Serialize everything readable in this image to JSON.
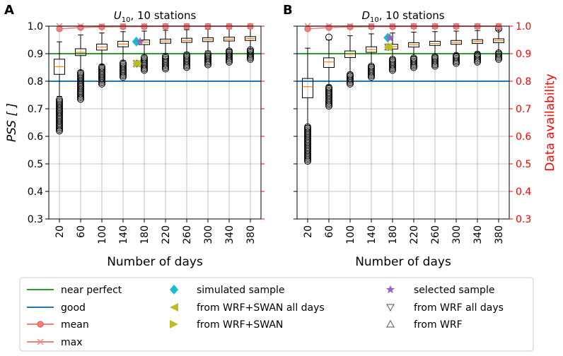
{
  "chart_data": [
    {
      "type": "box",
      "panel_label": "A",
      "title_var": "U",
      "title_sub": "10",
      "title_rest": ", 10 stations",
      "ylabel": "PSS [ ]",
      "xlabel": "Number of days",
      "ylim": [
        0.3,
        1.0
      ],
      "yticks": [
        "0.3",
        "0.4",
        "0.5",
        "0.6",
        "0.7",
        "0.8",
        "0.9",
        "1.0"
      ],
      "categories": [
        "20",
        "60",
        "100",
        "140",
        "180",
        "220",
        "260",
        "300",
        "340",
        "380"
      ],
      "boxes": [
        {
          "whislo": 0.745,
          "q1": 0.825,
          "med": 0.853,
          "q3": 0.88,
          "whishi": 0.943,
          "fliers_lo": [
            0.62,
            0.735
          ],
          "fliers_hi": []
        },
        {
          "whislo": 0.84,
          "q1": 0.893,
          "med": 0.905,
          "q3": 0.918,
          "whishi": 0.968,
          "fliers_lo": [
            0.735,
            0.835
          ],
          "fliers_hi": []
        },
        {
          "whislo": 0.86,
          "q1": 0.913,
          "med": 0.924,
          "q3": 0.935,
          "whishi": 0.975,
          "fliers_lo": [
            0.79,
            0.855
          ],
          "fliers_hi": []
        },
        {
          "whislo": 0.875,
          "q1": 0.925,
          "med": 0.935,
          "q3": 0.945,
          "whishi": 0.98,
          "fliers_lo": [
            0.815,
            0.87
          ],
          "fliers_hi": []
        },
        {
          "whislo": 0.895,
          "q1": 0.933,
          "med": 0.942,
          "q3": 0.95,
          "whishi": 0.982,
          "fliers_lo": [
            0.84,
            0.89
          ],
          "fliers_hi": []
        },
        {
          "whislo": 0.9,
          "q1": 0.938,
          "med": 0.946,
          "q3": 0.953,
          "whishi": 0.985,
          "fliers_lo": [
            0.845,
            0.895
          ],
          "fliers_hi": []
        },
        {
          "whislo": 0.905,
          "q1": 0.941,
          "med": 0.948,
          "q3": 0.956,
          "whishi": 0.987,
          "fliers_lo": [
            0.85,
            0.9
          ],
          "fliers_hi": []
        },
        {
          "whislo": 0.91,
          "q1": 0.944,
          "med": 0.951,
          "q3": 0.958,
          "whishi": 0.989,
          "fliers_lo": [
            0.86,
            0.905
          ],
          "fliers_hi": []
        },
        {
          "whislo": 0.915,
          "q1": 0.946,
          "med": 0.953,
          "q3": 0.96,
          "whishi": 0.99,
          "fliers_lo": [
            0.87,
            0.91
          ],
          "fliers_hi": []
        },
        {
          "whislo": 0.918,
          "q1": 0.948,
          "med": 0.955,
          "q3": 0.962,
          "whishi": 0.991,
          "fliers_lo": [
            0.88,
            0.915
          ],
          "fliers_hi": []
        }
      ],
      "near_perfect": 0.9,
      "good": 0.8,
      "availability_ylim": [
        0.3,
        1.0
      ],
      "availability_yticks": [
        "0.3",
        "0.4",
        "0.5",
        "0.6",
        "0.7",
        "0.8",
        "0.9",
        "1.0"
      ],
      "availability_ylabel": "Data availability",
      "mean_availability": [
        0.99,
        0.995,
        0.997,
        0.998,
        0.998,
        0.999,
        0.999,
        0.999,
        0.999,
        0.999
      ],
      "max_availability": [
        1.0,
        1.0,
        1.0,
        1.0,
        1.0,
        1.0,
        1.0,
        1.0,
        1.0,
        1.0
      ],
      "markers": {
        "simulated_sample": {
          "days": 165,
          "value": 0.944
        },
        "selected_sample": {
          "days": 172,
          "value": 0.944
        },
        "wrf_swan_all_days": {
          "days": 165,
          "value": 0.864
        },
        "wrf_swan": {
          "days": 168,
          "value": 0.864
        },
        "wrf_all_days": {
          "days": 166,
          "value": 0.864
        },
        "wrf": {
          "days": 166,
          "value": 0.864
        }
      }
    },
    {
      "type": "box",
      "panel_label": "B",
      "title_var": "D",
      "title_sub": "10",
      "title_rest": ", 10 stations",
      "ylabel": "PSS [ ]",
      "xlabel": "Number of days",
      "ylim": [
        0.3,
        1.0
      ],
      "yticks": [
        "0.3",
        "0.4",
        "0.5",
        "0.6",
        "0.7",
        "0.8",
        "0.9",
        "1.0"
      ],
      "categories": [
        "20",
        "60",
        "100",
        "140",
        "180",
        "220",
        "260",
        "300",
        "340",
        "380"
      ],
      "boxes": [
        {
          "whislo": 0.64,
          "q1": 0.74,
          "med": 0.78,
          "q3": 0.81,
          "whishi": 0.92,
          "fliers_lo": [
            0.51,
            0.635
          ],
          "fliers_hi": []
        },
        {
          "whislo": 0.785,
          "q1": 0.85,
          "med": 0.87,
          "q3": 0.885,
          "whishi": 0.95,
          "fliers_lo": [
            0.71,
            0.78
          ],
          "fliers_hi": [
            0.96
          ]
        },
        {
          "whislo": 0.83,
          "q1": 0.886,
          "med": 0.898,
          "q3": 0.91,
          "whishi": 0.965,
          "fliers_lo": [
            0.79,
            0.825
          ],
          "fliers_hi": []
        },
        {
          "whislo": 0.86,
          "q1": 0.905,
          "med": 0.915,
          "q3": 0.925,
          "whishi": 0.972,
          "fliers_lo": [
            0.815,
            0.855
          ],
          "fliers_hi": []
        },
        {
          "whislo": 0.885,
          "q1": 0.917,
          "med": 0.926,
          "q3": 0.934,
          "whishi": 0.975,
          "fliers_lo": [
            0.84,
            0.88
          ],
          "fliers_hi": []
        },
        {
          "whislo": 0.89,
          "q1": 0.924,
          "med": 0.932,
          "q3": 0.94,
          "whishi": 0.978,
          "fliers_lo": [
            0.85,
            0.885
          ],
          "fliers_hi": []
        },
        {
          "whislo": 0.895,
          "q1": 0.93,
          "med": 0.937,
          "q3": 0.945,
          "whishi": 0.98,
          "fliers_lo": [
            0.855,
            0.89
          ],
          "fliers_hi": []
        },
        {
          "whislo": 0.9,
          "q1": 0.934,
          "med": 0.941,
          "q3": 0.948,
          "whishi": 0.982,
          "fliers_lo": [
            0.865,
            0.895
          ],
          "fliers_hi": []
        },
        {
          "whislo": 0.905,
          "q1": 0.937,
          "med": 0.944,
          "q3": 0.951,
          "whishi": 0.984,
          "fliers_lo": [
            0.87,
            0.9
          ],
          "fliers_hi": []
        },
        {
          "whislo": 0.908,
          "q1": 0.94,
          "med": 0.947,
          "q3": 0.954,
          "whishi": 0.985,
          "fliers_lo": [
            0.88,
            0.905
          ],
          "fliers_hi": [
            0.99
          ]
        }
      ],
      "near_perfect": 0.9,
      "good": 0.8,
      "availability_ylim": [
        0.3,
        1.0
      ],
      "availability_yticks": [
        "0.3",
        "0.4",
        "0.5",
        "0.6",
        "0.7",
        "0.8",
        "0.9",
        "1.0"
      ],
      "availability_ylabel": "Data availability",
      "mean_availability": [
        0.99,
        0.995,
        0.997,
        0.998,
        0.998,
        0.999,
        0.999,
        0.999,
        0.999,
        0.999
      ],
      "max_availability": [
        1.0,
        1.0,
        1.0,
        1.0,
        1.0,
        1.0,
        1.0,
        1.0,
        1.0,
        1.0
      ],
      "markers": {
        "simulated_sample": {
          "days": 171,
          "value": 0.958
        },
        "selected_sample": {
          "days": 175,
          "value": 0.958
        },
        "wrf_swan_all_days": {
          "days": 171,
          "value": 0.924
        },
        "wrf_swan": {
          "days": 175,
          "value": 0.924
        },
        "wrf_all_days": {
          "days": 172,
          "value": 0.924
        },
        "wrf": {
          "days": 172,
          "value": 0.924
        }
      }
    }
  ],
  "legend": [
    {
      "key": "near_perfect",
      "label": "near perfect",
      "symbol": "line",
      "color": "#2ca02c"
    },
    {
      "key": "good",
      "label": "good",
      "symbol": "line",
      "color": "#1f77b4"
    },
    {
      "key": "mean",
      "label": "mean",
      "symbol": "line-circle",
      "color": "#f08080"
    },
    {
      "key": "max",
      "label": "max",
      "symbol": "line-x",
      "color": "#f08080"
    },
    {
      "key": "simulated_sample",
      "label": "simulated sample",
      "symbol": "diamond",
      "color": "#17becf"
    },
    {
      "key": "wrf_swan_all_days",
      "label": "from WRF+SWAN all days",
      "symbol": "triangle-left",
      "color": "#bcbd22"
    },
    {
      "key": "wrf_swan",
      "label": "from WRF+SWAN",
      "symbol": "triangle-right",
      "color": "#bcbd22"
    },
    {
      "key": "selected_sample",
      "label": "selected sample",
      "symbol": "star",
      "color": "#9467bd"
    },
    {
      "key": "wrf_all_days",
      "label": "from WRF all days",
      "symbol": "triangle-down-open",
      "color": "#555555"
    },
    {
      "key": "wrf",
      "label": "from WRF",
      "symbol": "triangle-up-open",
      "color": "#555555"
    }
  ],
  "colors": {
    "near_perfect": "#2ca02c",
    "good": "#1f77b4",
    "availability": "#f08080",
    "availability_axis": "#ff0000",
    "median": "#ff7f0e",
    "simulated": "#17becf",
    "selected": "#9467bd",
    "wrf_swan": "#bcbd22",
    "wrf": "#555555",
    "grid": "#b0b0b0"
  }
}
